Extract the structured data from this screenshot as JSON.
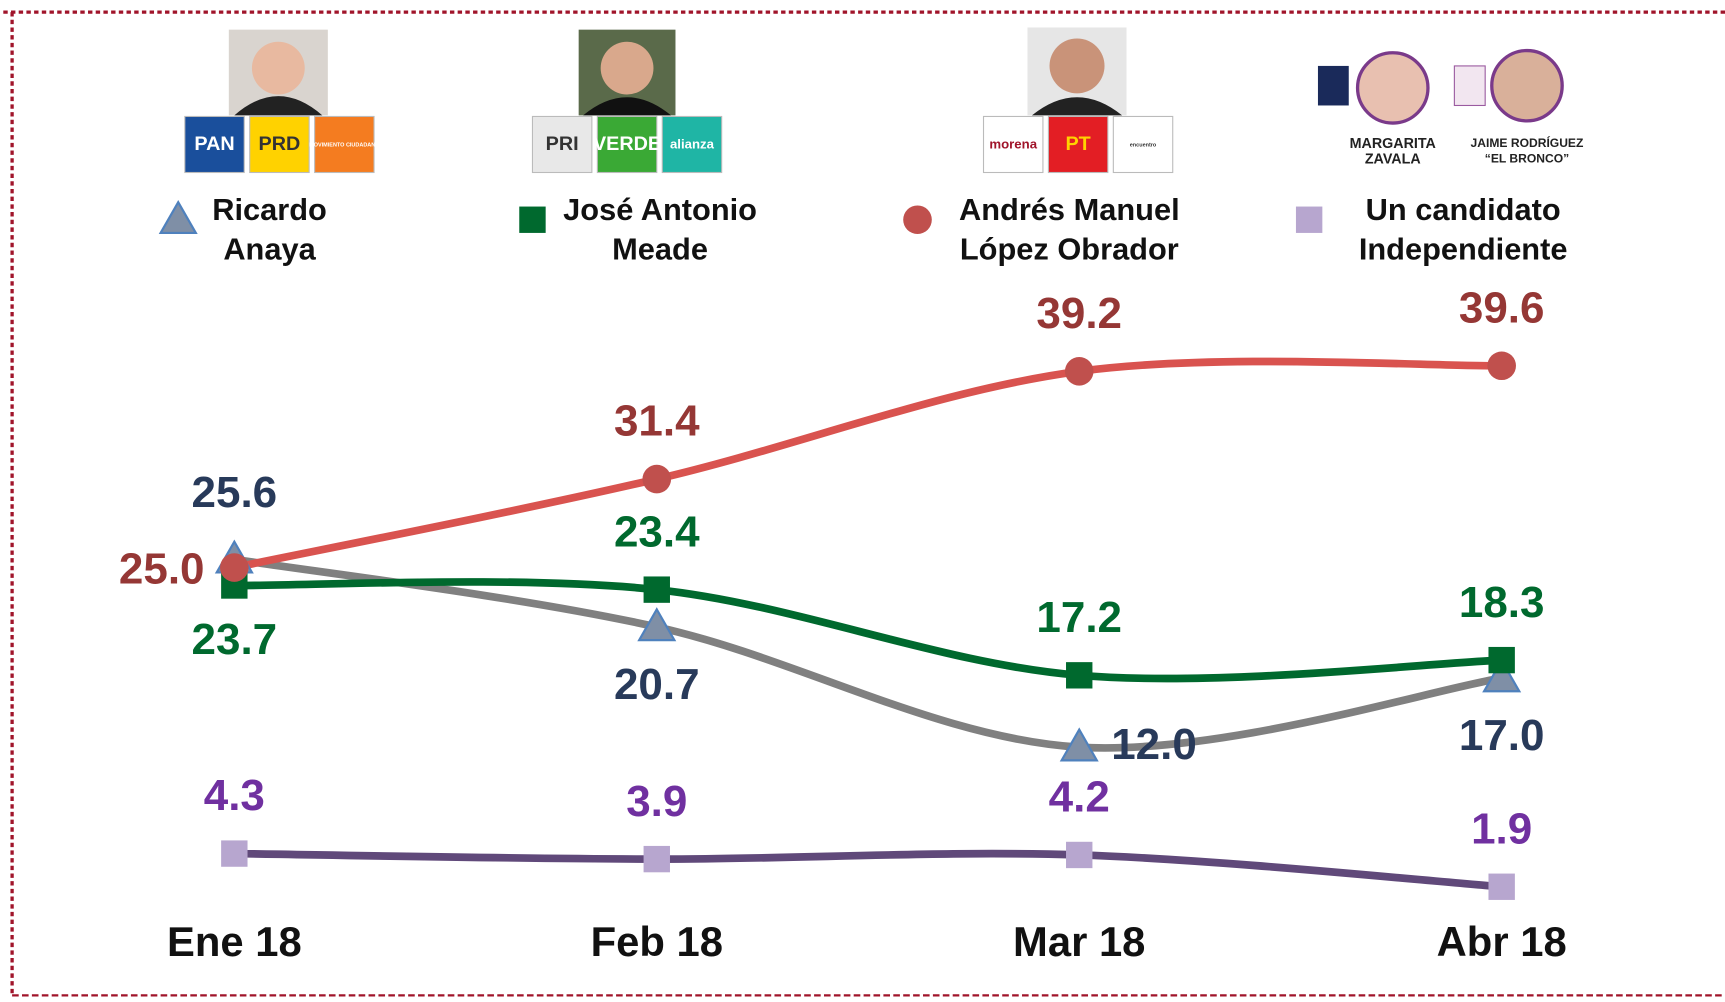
{
  "chart_data": {
    "type": "line",
    "categories": [
      "Ene 18",
      "Feb 18",
      "Mar 18",
      "Abr 18"
    ],
    "ylim": [
      0,
      45
    ],
    "series": [
      {
        "name": "Ricardo Anaya",
        "color": "#808080",
        "marker": "triangle",
        "marker_color": "#7f8fa6",
        "label_color": "#283a5a",
        "values": [
          25.6,
          20.7,
          12.0,
          17.0
        ],
        "value_labels": [
          "25.6",
          "20.7",
          "12.0",
          "17.0"
        ]
      },
      {
        "name": "José Antonio Meade",
        "color": "#00692e",
        "marker": "square",
        "marker_color": "#00692e",
        "label_color": "#00692e",
        "values": [
          23.7,
          23.4,
          17.2,
          18.3
        ]
      },
      {
        "name": "Andrés Manuel López Obrador",
        "color": "#d9534f",
        "marker": "circle",
        "marker_color": "#c0504d",
        "label_color": "#953735",
        "values": [
          25.0,
          31.4,
          39.2,
          39.6
        ],
        "value_labels": [
          "25.0",
          "31.4",
          "39.2",
          "39.6"
        ]
      },
      {
        "name": "Un candidato Independiente",
        "color": "#60497a",
        "marker": "square",
        "marker_color": "#b7a6cf",
        "label_color": "#7030a0",
        "values": [
          4.3,
          3.9,
          4.2,
          1.9
        ]
      }
    ],
    "logos": [
      [
        {
          "text": "PAN",
          "color": "#1a4f9c"
        },
        {
          "text": "PRD",
          "color": "#ffd200"
        },
        {
          "text": "MOVIMIENTO CIUDADANO",
          "color": "#f47c20"
        }
      ],
      [
        {
          "text": "PRI",
          "color": "#e8e8e8"
        },
        {
          "text": "VERDE",
          "color": "#3aa935"
        },
        {
          "text": "alianza",
          "color": "#1fb5a5"
        }
      ],
      [
        {
          "text": "morena",
          "color": "#ffffff"
        },
        {
          "text": "PT",
          "color": "#e31e24"
        },
        {
          "text": "encuentro",
          "color": "#ffffff"
        }
      ]
    ],
    "photo_captions": [
      "MARGARITA ZAVALA",
      "JAIME RODRÍGUEZ “EL BRONCO”"
    ]
  }
}
